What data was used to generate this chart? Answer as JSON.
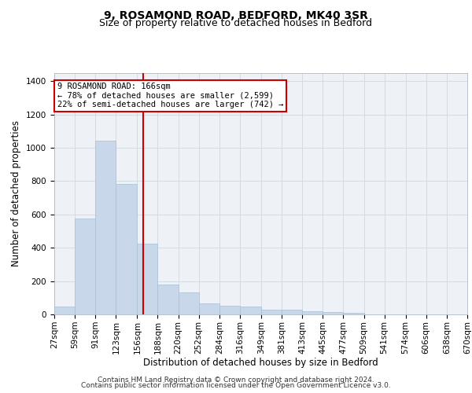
{
  "title": "9, ROSAMOND ROAD, BEDFORD, MK40 3SR",
  "subtitle": "Size of property relative to detached houses in Bedford",
  "xlabel": "Distribution of detached houses by size in Bedford",
  "ylabel": "Number of detached properties",
  "bar_color": "#c8d8ea",
  "bar_edge_color": "#a8c0d4",
  "reference_line_x": 166,
  "reference_line_color": "#cc0000",
  "annotation_line1": "9 ROSAMOND ROAD: 166sqm",
  "annotation_line2": "← 78% of detached houses are smaller (2,599)",
  "annotation_line3": "22% of semi-detached houses are larger (742) →",
  "annotation_box_color": "#cc0000",
  "bin_edges": [
    27,
    59,
    91,
    123,
    156,
    188,
    220,
    252,
    284,
    316,
    349,
    381,
    413,
    445,
    477,
    509,
    541,
    574,
    606,
    638,
    670
  ],
  "bar_heights": [
    45,
    575,
    1040,
    785,
    425,
    180,
    130,
    65,
    50,
    45,
    30,
    27,
    20,
    15,
    10,
    0,
    0,
    0,
    0,
    0
  ],
  "ylim": [
    0,
    1450
  ],
  "yticks": [
    0,
    200,
    400,
    600,
    800,
    1000,
    1200,
    1400
  ],
  "footer_line1": "Contains HM Land Registry data © Crown copyright and database right 2024.",
  "footer_line2": "Contains public sector information licensed under the Open Government Licence v3.0.",
  "plot_bg_color": "#eef2f7",
  "grid_color": "#d0d8e0",
  "title_fontsize": 10,
  "subtitle_fontsize": 9,
  "axis_label_fontsize": 8.5,
  "tick_fontsize": 7.5,
  "annot_fontsize": 7.5,
  "footer_fontsize": 6.5
}
